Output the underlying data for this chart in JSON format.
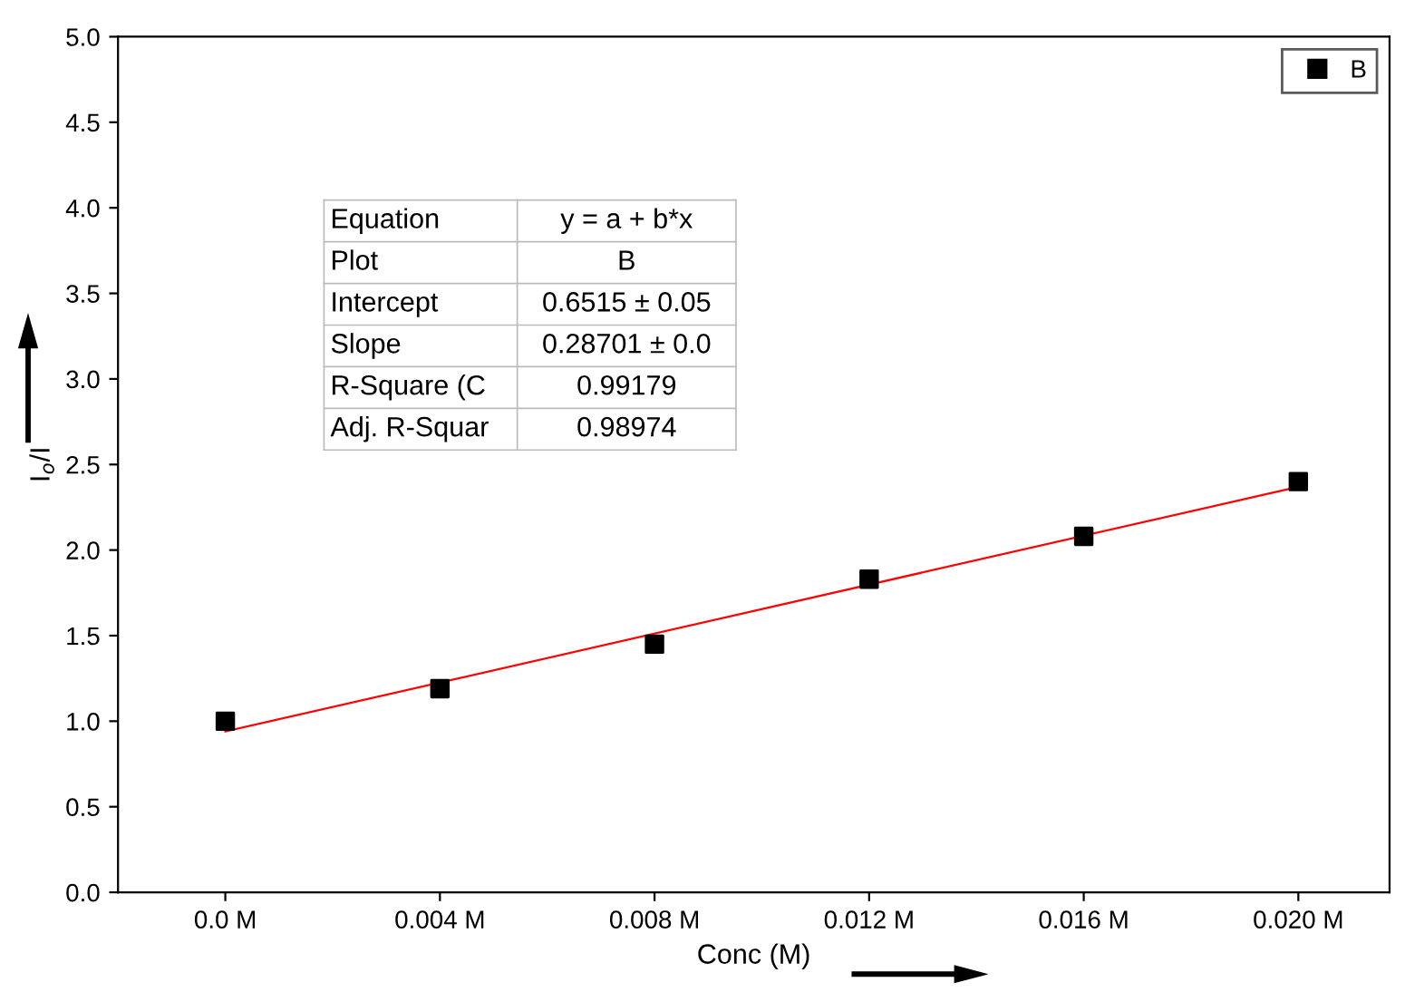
{
  "chart_data": {
    "type": "scatter",
    "xlabel": "Conc (M)",
    "ylabel": "I$_{o}$/I",
    "x": [
      0,
      0.004,
      0.008,
      0.012,
      0.016,
      0.02
    ],
    "series": [
      {
        "name": "B",
        "color": "#000000",
        "marker": "square",
        "values": [
          1.0,
          1.19,
          1.45,
          1.83,
          2.08,
          2.4
        ]
      },
      {
        "type": "line",
        "color": "#ff0000",
        "marker": "none",
        "line_style": "solid",
        "x": [
          0,
          0.02
        ],
        "values": [
          0.94,
          2.37
        ]
      }
    ],
    "xlim": [
      -0.002,
      0.0217
    ],
    "xticks": [
      {
        "value": 0,
        "label": "0.0 M"
      },
      {
        "value": 0.004,
        "label": "0.004 M"
      },
      {
        "value": 0.008,
        "label": "0.008 M"
      },
      {
        "value": 0.012,
        "label": "0.012 M"
      },
      {
        "value": 0.016,
        "label": "0.016 M"
      },
      {
        "value": 0.02,
        "label": "0.020 M"
      }
    ],
    "ylim": [
      0,
      5
    ],
    "yticks": [
      {
        "value": 0,
        "label": "0.0"
      },
      {
        "value": 0.5,
        "label": "0.5"
      },
      {
        "value": 1,
        "label": "1.0"
      },
      {
        "value": 1.5,
        "label": "1.5"
      },
      {
        "value": 2,
        "label": "2.0"
      },
      {
        "value": 2.5,
        "label": "2.5"
      },
      {
        "value": 3,
        "label": "3.0"
      },
      {
        "value": 3.5,
        "label": "3.5"
      },
      {
        "value": 4,
        "label": "4.0"
      },
      {
        "value": 4.5,
        "label": "4.5"
      },
      {
        "value": 5,
        "label": "5.0"
      }
    ],
    "annotations": [
      "Equation",
      "y = a + b*x",
      "Plot",
      "B",
      "Intercept",
      "0.6515 ± 0.05",
      "Slope",
      "0.28701 ± 0.0",
      "R-Square (C",
      "0.99179",
      "Adj. R-Squar",
      "0.98974"
    ],
    "grid": false,
    "legend": "top right"
  }
}
